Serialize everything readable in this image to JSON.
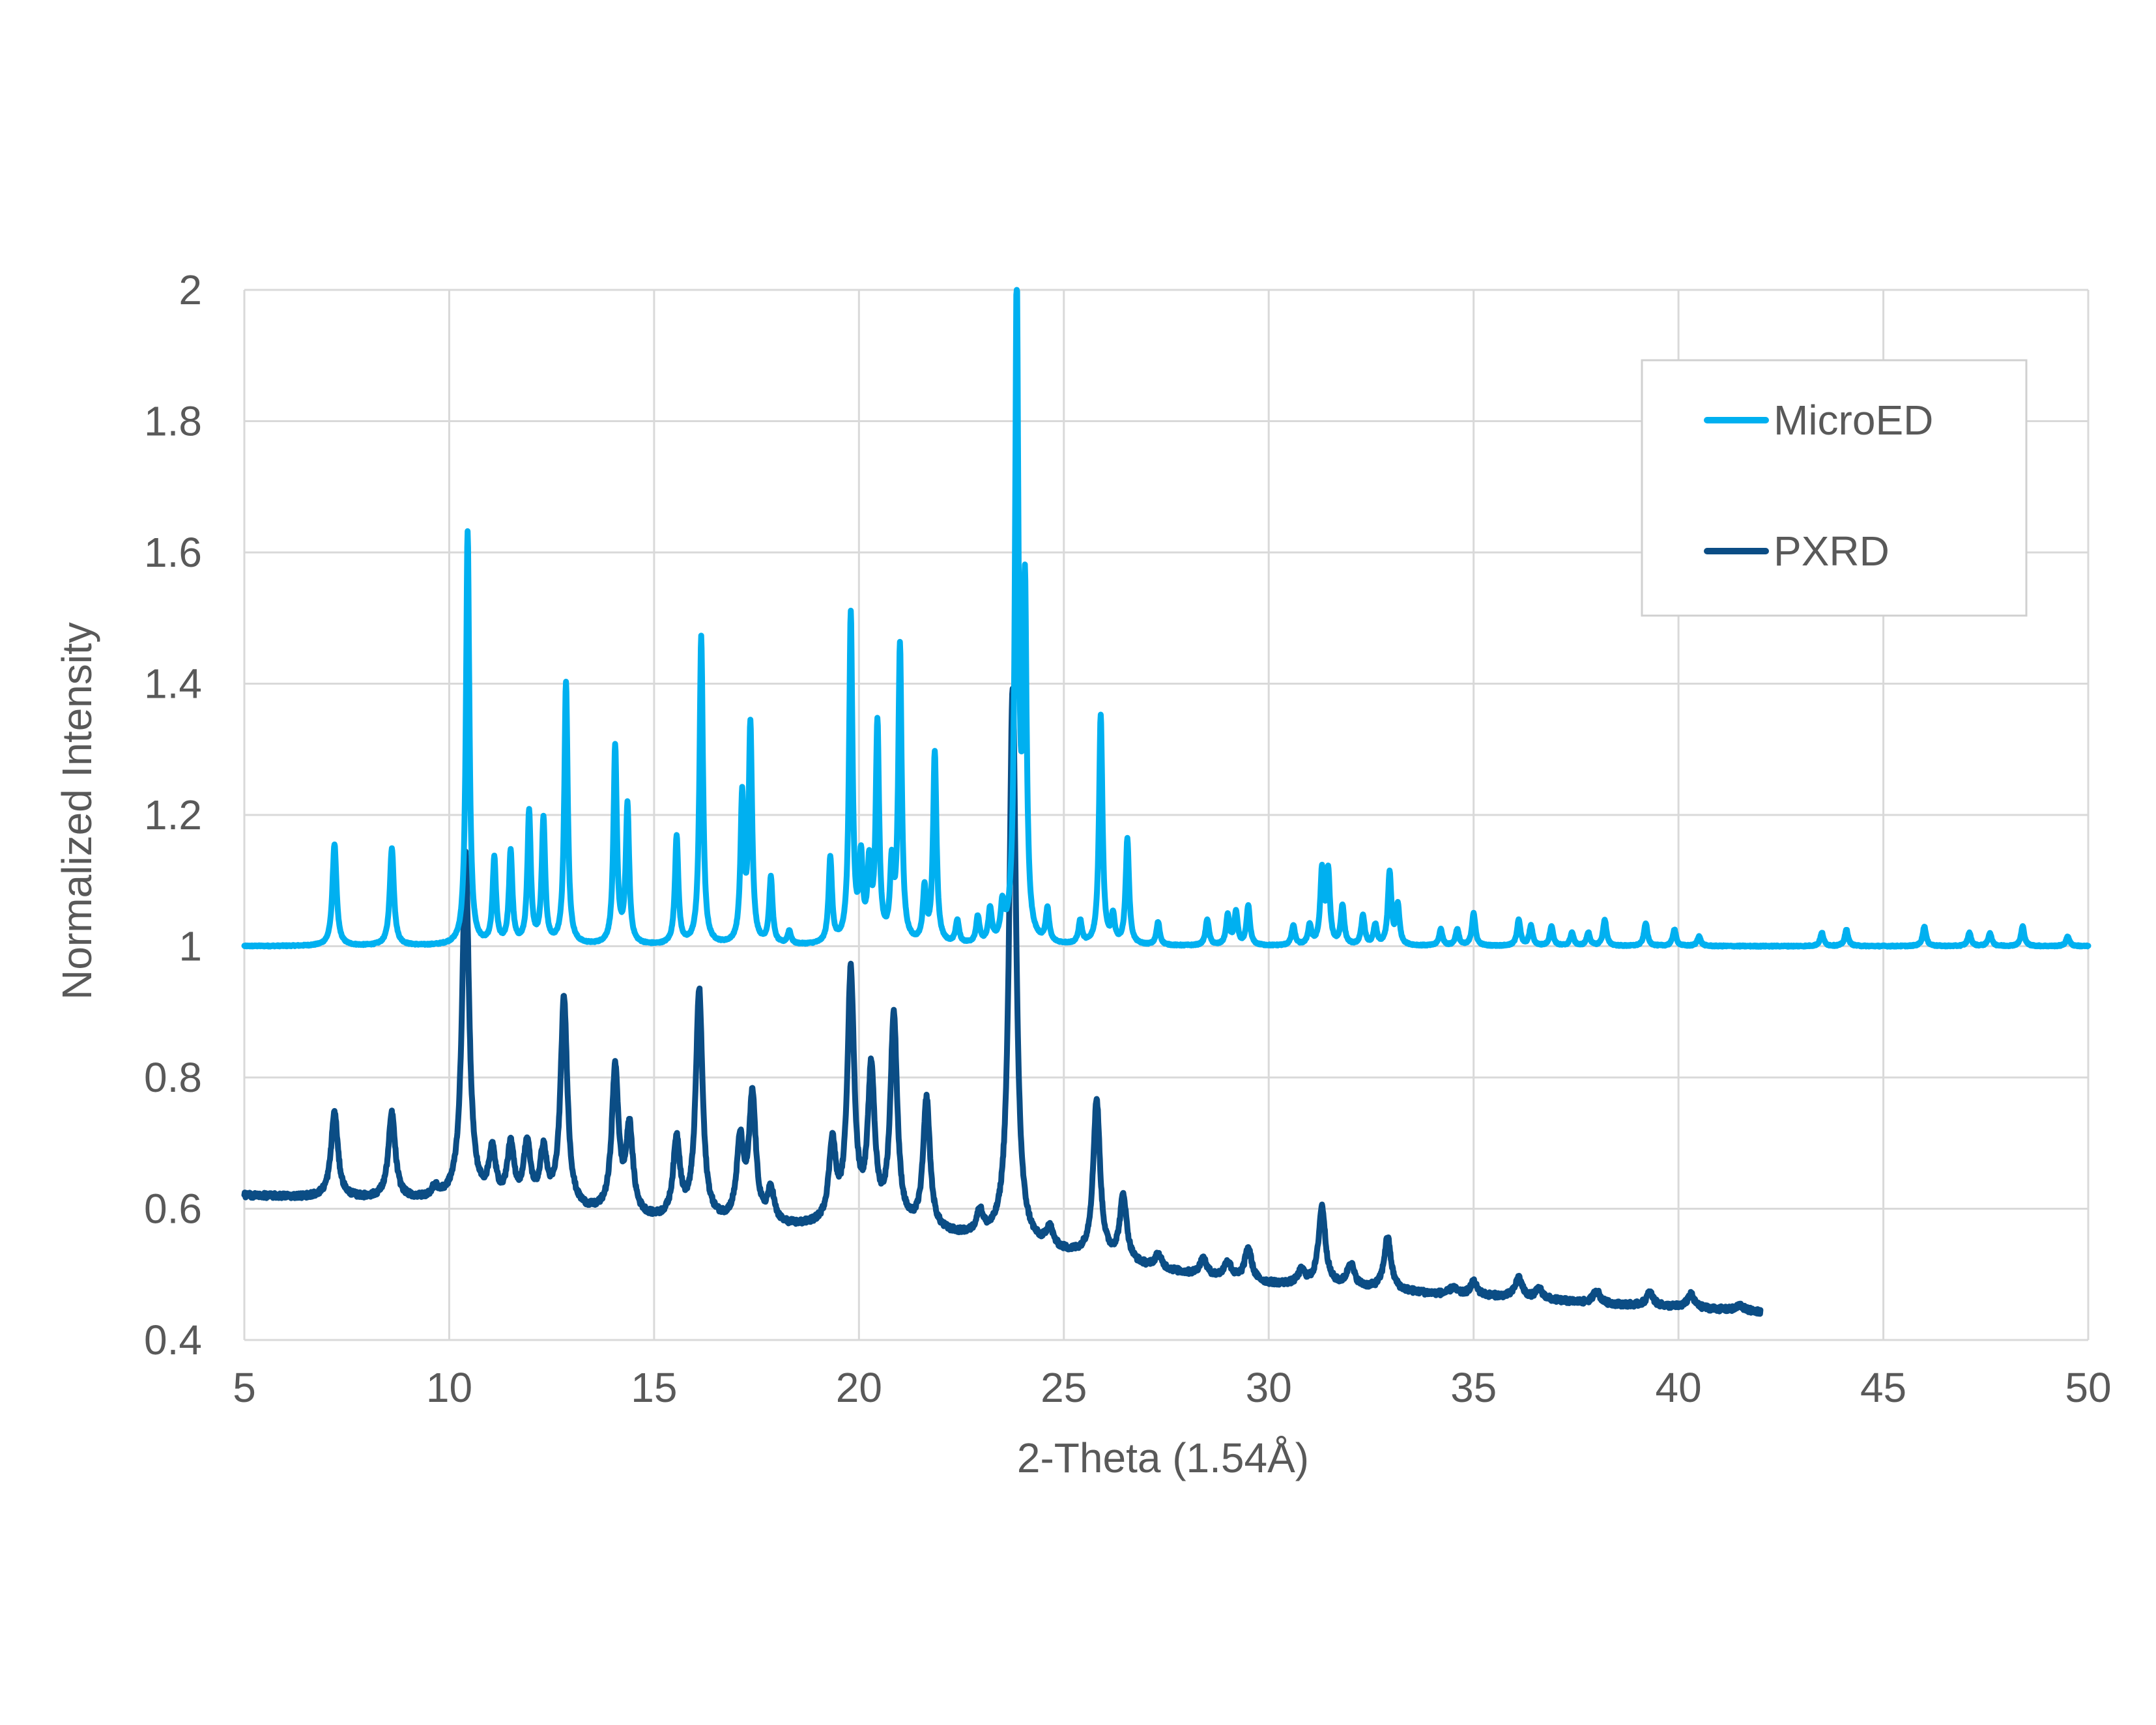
{
  "chart_data": {
    "type": "line",
    "title": "",
    "xlabel": "2-Theta (1.54Å)",
    "ylabel": "Normalized Intensity",
    "xlim": [
      5,
      50
    ],
    "ylim": [
      0.4,
      2
    ],
    "xticks": [
      5,
      10,
      15,
      20,
      25,
      30,
      35,
      40,
      45,
      50
    ],
    "yticks": [
      "0.4",
      "0.6",
      "0.8",
      "1",
      "1.2",
      "1.4",
      "1.6",
      "1.8",
      "2"
    ],
    "grid": true,
    "legend_position": "top-right",
    "series": [
      {
        "name": "MicroED",
        "color": "#00B0F0",
        "x_range": [
          5,
          50
        ],
        "baseline": 1.0,
        "peaks": [
          [
            7.2,
            0.155,
            0.06
          ],
          [
            8.6,
            0.148,
            0.06
          ],
          [
            10.45,
            0.63,
            0.05
          ],
          [
            11.1,
            0.13,
            0.05
          ],
          [
            11.5,
            0.14,
            0.05
          ],
          [
            11.95,
            0.2,
            0.05
          ],
          [
            12.3,
            0.19,
            0.05
          ],
          [
            12.85,
            0.4,
            0.05
          ],
          [
            14.05,
            0.3,
            0.05
          ],
          [
            14.35,
            0.21,
            0.05
          ],
          [
            15.55,
            0.165,
            0.05
          ],
          [
            16.15,
            0.47,
            0.05
          ],
          [
            17.15,
            0.22,
            0.05
          ],
          [
            17.35,
            0.33,
            0.05
          ],
          [
            17.85,
            0.1,
            0.05
          ],
          [
            18.3,
            0.02,
            0.05
          ],
          [
            19.3,
            0.13,
            0.05
          ],
          [
            19.8,
            0.5,
            0.05
          ],
          [
            20.05,
            0.12,
            0.05
          ],
          [
            20.25,
            0.11,
            0.05
          ],
          [
            20.45,
            0.33,
            0.05
          ],
          [
            20.8,
            0.11,
            0.05
          ],
          [
            21.0,
            0.45,
            0.05
          ],
          [
            21.6,
            0.08,
            0.05
          ],
          [
            21.85,
            0.29,
            0.05
          ],
          [
            22.4,
            0.035,
            0.05
          ],
          [
            22.9,
            0.04,
            0.05
          ],
          [
            23.2,
            0.05,
            0.05
          ],
          [
            23.5,
            0.05,
            0.05
          ],
          [
            23.85,
            1.0,
            0.05
          ],
          [
            24.05,
            0.52,
            0.05
          ],
          [
            24.6,
            0.05,
            0.05
          ],
          [
            25.4,
            0.035,
            0.05
          ],
          [
            25.9,
            0.35,
            0.05
          ],
          [
            26.2,
            0.04,
            0.05
          ],
          [
            26.55,
            0.16,
            0.05
          ],
          [
            27.3,
            0.035,
            0.05
          ],
          [
            28.5,
            0.04,
            0.05
          ],
          [
            29.0,
            0.045,
            0.05
          ],
          [
            29.2,
            0.05,
            0.05
          ],
          [
            29.5,
            0.06,
            0.05
          ],
          [
            30.6,
            0.03,
            0.05
          ],
          [
            31.0,
            0.03,
            0.05
          ],
          [
            31.3,
            0.11,
            0.05
          ],
          [
            31.45,
            0.11,
            0.05
          ],
          [
            31.8,
            0.06,
            0.05
          ],
          [
            32.3,
            0.045,
            0.05
          ],
          [
            32.6,
            0.03,
            0.05
          ],
          [
            32.95,
            0.11,
            0.05
          ],
          [
            33.15,
            0.06,
            0.05
          ],
          [
            34.2,
            0.025,
            0.05
          ],
          [
            34.6,
            0.025,
            0.05
          ],
          [
            35.0,
            0.05,
            0.05
          ],
          [
            36.1,
            0.04,
            0.05
          ],
          [
            36.4,
            0.03,
            0.05
          ],
          [
            36.9,
            0.03,
            0.05
          ],
          [
            37.4,
            0.02,
            0.05
          ],
          [
            37.8,
            0.02,
            0.05
          ],
          [
            38.2,
            0.04,
            0.05
          ],
          [
            39.2,
            0.035,
            0.05
          ],
          [
            39.9,
            0.025,
            0.05
          ],
          [
            40.5,
            0.015,
            0.05
          ],
          [
            43.5,
            0.02,
            0.05
          ],
          [
            44.1,
            0.025,
            0.05
          ],
          [
            46.0,
            0.03,
            0.05
          ],
          [
            47.1,
            0.02,
            0.05
          ],
          [
            47.6,
            0.02,
            0.05
          ],
          [
            48.4,
            0.03,
            0.05
          ],
          [
            49.5,
            0.015,
            0.05
          ]
        ]
      },
      {
        "name": "PXRD",
        "color": "#0B4D85",
        "x_range": [
          5,
          42
        ],
        "background": [
          [
            5,
            0.62
          ],
          [
            10,
            0.61
          ],
          [
            12,
            0.6
          ],
          [
            15,
            0.58
          ],
          [
            18,
            0.57
          ],
          [
            20,
            0.57
          ],
          [
            22.5,
            0.555
          ],
          [
            24,
            0.54
          ],
          [
            26,
            0.52
          ],
          [
            28,
            0.5
          ],
          [
            30,
            0.485
          ],
          [
            32,
            0.48
          ],
          [
            34,
            0.47
          ],
          [
            36,
            0.465
          ],
          [
            38,
            0.455
          ],
          [
            40,
            0.45
          ],
          [
            42,
            0.443
          ]
        ],
        "peaks": [
          [
            7.2,
            0.13,
            0.1
          ],
          [
            8.6,
            0.13,
            0.1
          ],
          [
            9.65,
            0.015,
            0.1
          ],
          [
            10.4,
            0.53,
            0.1
          ],
          [
            11.05,
            0.075,
            0.1
          ],
          [
            11.5,
            0.085,
            0.1
          ],
          [
            11.9,
            0.09,
            0.1
          ],
          [
            12.3,
            0.08,
            0.1
          ],
          [
            12.8,
            0.32,
            0.1
          ],
          [
            14.05,
            0.22,
            0.1
          ],
          [
            14.4,
            0.13,
            0.1
          ],
          [
            15.55,
            0.12,
            0.1
          ],
          [
            16.1,
            0.35,
            0.1
          ],
          [
            17.1,
            0.12,
            0.1
          ],
          [
            17.4,
            0.19,
            0.1
          ],
          [
            17.85,
            0.05,
            0.1
          ],
          [
            19.35,
            0.12,
            0.1
          ],
          [
            19.8,
            0.38,
            0.1
          ],
          [
            20.3,
            0.23,
            0.1
          ],
          [
            20.85,
            0.32,
            0.1
          ],
          [
            21.65,
            0.2,
            0.1
          ],
          [
            22.95,
            0.035,
            0.1
          ],
          [
            23.75,
            0.85,
            0.1
          ],
          [
            24.65,
            0.03,
            0.1
          ],
          [
            25.8,
            0.24,
            0.1
          ],
          [
            26.45,
            0.1,
            0.1
          ],
          [
            27.3,
            0.02,
            0.1
          ],
          [
            28.4,
            0.025,
            0.1
          ],
          [
            29.0,
            0.025,
            0.1
          ],
          [
            29.5,
            0.05,
            0.1
          ],
          [
            30.8,
            0.02,
            0.1
          ],
          [
            31.3,
            0.12,
            0.1
          ],
          [
            32.0,
            0.035,
            0.1
          ],
          [
            32.9,
            0.08,
            0.1
          ],
          [
            34.5,
            0.01,
            0.1
          ],
          [
            35.0,
            0.02,
            0.1
          ],
          [
            36.1,
            0.03,
            0.1
          ],
          [
            36.6,
            0.015,
            0.1
          ],
          [
            38.0,
            0.02,
            0.1
          ],
          [
            39.3,
            0.02,
            0.1
          ],
          [
            40.3,
            0.02,
            0.1
          ],
          [
            41.5,
            0.008,
            0.1
          ]
        ]
      }
    ]
  },
  "legend": {
    "items": [
      {
        "label": "MicroED",
        "color": "#00B0F0"
      },
      {
        "label": "PXRD",
        "color": "#0B4D85"
      }
    ]
  }
}
